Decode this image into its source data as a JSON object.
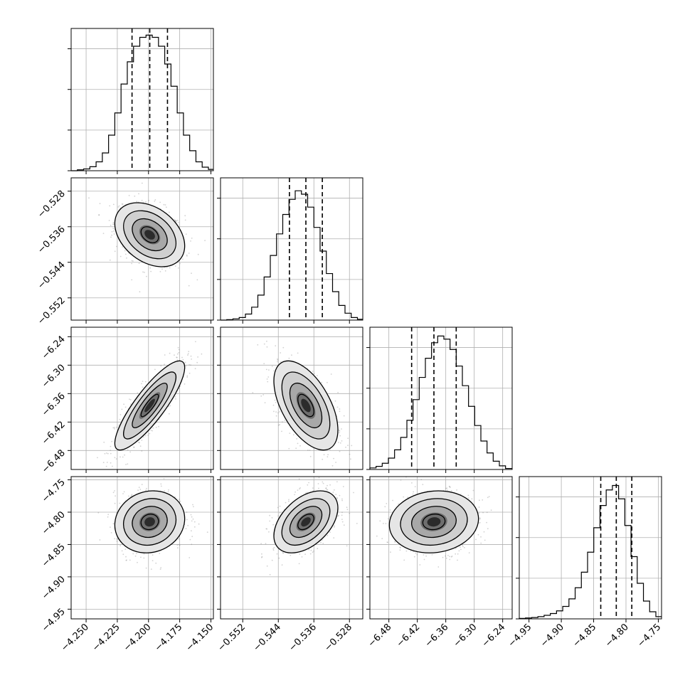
{
  "chart_data": {
    "type": "corner",
    "title": "",
    "parameters": 4,
    "quantiles": [
      0.16,
      0.5,
      0.84
    ],
    "grid": true,
    "colors": {
      "hist": "#000000",
      "grid": "#b0b0b0",
      "scatter": "#7f7f7f",
      "contour": "#000000",
      "quantile_line": "#000000"
    },
    "axes": [
      {
        "index": 0,
        "label": "",
        "range": [
          -4.262,
          -4.148
        ],
        "ticks": [
          -4.25,
          -4.225,
          -4.2,
          -4.175,
          -4.15
        ],
        "tick_labels": [
          "−4.250",
          "−4.225",
          "−4.200",
          "−4.175",
          "−4.150"
        ],
        "mean": -4.199,
        "sigma": 0.014,
        "corr_ref": 0
      },
      {
        "index": 1,
        "label": "",
        "range": [
          -0.557,
          -0.525
        ],
        "ticks": [
          -0.552,
          -0.544,
          -0.536,
          -0.528
        ],
        "tick_labels": [
          "−0.552",
          "−0.544",
          "−0.536",
          "−0.528"
        ],
        "mean": -0.5378,
        "sigma": 0.0036,
        "corr_ref": -0.3
      },
      {
        "index": 2,
        "label": "",
        "range": [
          -6.52,
          -6.22
        ],
        "ticks": [
          -6.48,
          -6.42,
          -6.36,
          -6.3,
          -6.24
        ],
        "tick_labels": [
          "−6.48",
          "−6.42",
          "−6.36",
          "−6.30",
          "−6.24"
        ],
        "mean": -6.385,
        "sigma": 0.047,
        "corr_ref": 0
      },
      {
        "index": 3,
        "label": "",
        "range": [
          -4.965,
          -4.745
        ],
        "ticks": [
          -4.95,
          -4.9,
          -4.85,
          -4.8,
          -4.75
        ],
        "tick_labels": [
          "−4.95",
          "−4.90",
          "−4.85",
          "−4.80",
          "−4.75"
        ],
        "mean": -4.815,
        "sigma": 0.024,
        "corr_ref": 0
      }
    ],
    "histograms": [
      {
        "param": 0,
        "bins": [
          -4.262,
          -4.257,
          -4.252,
          -4.247,
          -4.242,
          -4.237,
          -4.232,
          -4.227,
          -4.222,
          -4.217,
          -4.212,
          -4.207,
          -4.202,
          -4.197,
          -4.192,
          -4.187,
          -4.182,
          -4.177,
          -4.172,
          -4.167,
          -4.162,
          -4.157,
          -4.152,
          -4.148
        ],
        "counts": [
          0,
          2,
          4,
          9,
          20,
          40,
          80,
          130,
          195,
          245,
          280,
          300,
          305,
          300,
          280,
          240,
          190,
          130,
          80,
          45,
          20,
          8,
          3
        ],
        "ymax": 320,
        "quantile_values": [
          -4.2132,
          -4.199,
          -4.1848
        ]
      },
      {
        "param": 1,
        "bins": [
          -0.557,
          -0.5556,
          -0.5542,
          -0.5528,
          -0.5514,
          -0.55,
          -0.5486,
          -0.5472,
          -0.5458,
          -0.5444,
          -0.543,
          -0.5416,
          -0.5402,
          -0.5388,
          -0.5374,
          -0.536,
          -0.5346,
          -0.5332,
          -0.5318,
          -0.5304,
          -0.529,
          -0.5276,
          -0.5262,
          -0.525
        ],
        "counts": [
          0,
          1,
          3,
          6,
          14,
          30,
          58,
          100,
          150,
          200,
          245,
          280,
          300,
          292,
          262,
          215,
          160,
          108,
          66,
          34,
          16,
          6,
          2
        ],
        "ymax": 330,
        "quantile_values": [
          -0.5415,
          -0.5378,
          -0.5341
        ]
      },
      {
        "param": 2,
        "bins": [
          -6.52,
          -6.507,
          -6.494,
          -6.481,
          -6.468,
          -6.455,
          -6.442,
          -6.429,
          -6.416,
          -6.403,
          -6.39,
          -6.377,
          -6.364,
          -6.351,
          -6.338,
          -6.325,
          -6.312,
          -6.299,
          -6.286,
          -6.273,
          -6.26,
          -6.247,
          -6.234,
          -6.22
        ],
        "counts": [
          3,
          6,
          12,
          22,
          38,
          62,
          95,
          135,
          178,
          215,
          245,
          258,
          252,
          232,
          200,
          162,
          122,
          85,
          55,
          32,
          16,
          7,
          2
        ],
        "ymax": 275,
        "quantile_values": [
          -6.432,
          -6.385,
          -6.338
        ]
      },
      {
        "param": 3,
        "bins": [
          -4.965,
          -4.9554,
          -4.9458,
          -4.9362,
          -4.9266,
          -4.917,
          -4.9074,
          -4.8978,
          -4.8882,
          -4.8786,
          -4.869,
          -4.8594,
          -4.8498,
          -4.8402,
          -4.8306,
          -4.821,
          -4.8114,
          -4.8018,
          -4.7922,
          -4.7826,
          -4.773,
          -4.7634,
          -4.7538,
          -4.745
        ],
        "counts": [
          1,
          2,
          3,
          5,
          8,
          12,
          18,
          28,
          45,
          70,
          105,
          150,
          205,
          255,
          290,
          300,
          270,
          210,
          140,
          80,
          40,
          16,
          5
        ],
        "ymax": 320,
        "quantile_values": [
          -4.839,
          -4.815,
          -4.791
        ]
      }
    ],
    "pairs": [
      {
        "x": 0,
        "y": 1,
        "correlation": -0.35
      },
      {
        "x": 0,
        "y": 2,
        "correlation": 0.85
      },
      {
        "x": 1,
        "y": 2,
        "correlation": -0.55
      },
      {
        "x": 0,
        "y": 3,
        "correlation": 0.1
      },
      {
        "x": 1,
        "y": 3,
        "correlation": 0.45
      },
      {
        "x": 2,
        "y": 3,
        "correlation": 0.1
      }
    ]
  }
}
